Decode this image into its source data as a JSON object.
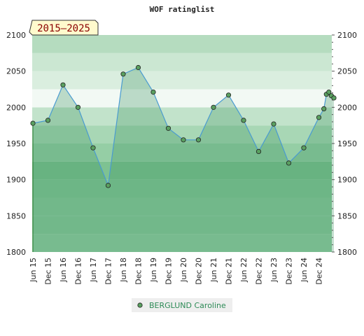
{
  "chart_data": {
    "type": "area",
    "title": "WOF ratinglist",
    "badge": "2015–2025",
    "xlabel": "",
    "ylabel": "",
    "ylim": [
      1800,
      2100
    ],
    "yticks": [
      1800,
      1850,
      1900,
      1950,
      2000,
      2050,
      2100
    ],
    "x_tick_labels": [
      "Jun 15",
      "Dec 15",
      "Jun 16",
      "Dec 16",
      "Jun 17",
      "Dec 17",
      "Jun 18",
      "Dec 18",
      "Jun 19",
      "Dec 19",
      "Jun 20",
      "Dec 20",
      "Jun 21",
      "Dec 21",
      "Jun 22",
      "Dec 22",
      "Jun 23",
      "Dec 23",
      "Jun 24",
      "Dec 24"
    ],
    "grid": true,
    "legend_position": "bottom-center",
    "series": [
      {
        "name": "BERGLUND Caroline",
        "color": "#4a9bd1",
        "marker_color": "#5aa060",
        "x": [
          "Jun 15",
          "Dec 15",
          "Jun 16",
          "Dec 16",
          "Jun 17",
          "Dec 17",
          "Jun 18",
          "Dec 18",
          "Jun 19",
          "Dec 19",
          "Jun 20",
          "Dec 20",
          "Jun 21",
          "Dec 21",
          "Jun 22",
          "Dec 22",
          "Jun 23",
          "Dec 23",
          "Jun 24",
          "Dec 24",
          "Feb 25",
          "Mar 25",
          "Apr 25",
          "May 25",
          "Jun 25"
        ],
        "values": [
          1978,
          1982,
          2031,
          2000,
          1944,
          1892,
          2046,
          2055,
          2021,
          1971,
          1955,
          1955,
          2000,
          2017,
          1982,
          1939,
          1977,
          1923,
          1944,
          1986,
          1998,
          2018,
          2021,
          2016,
          2013
        ]
      }
    ]
  }
}
